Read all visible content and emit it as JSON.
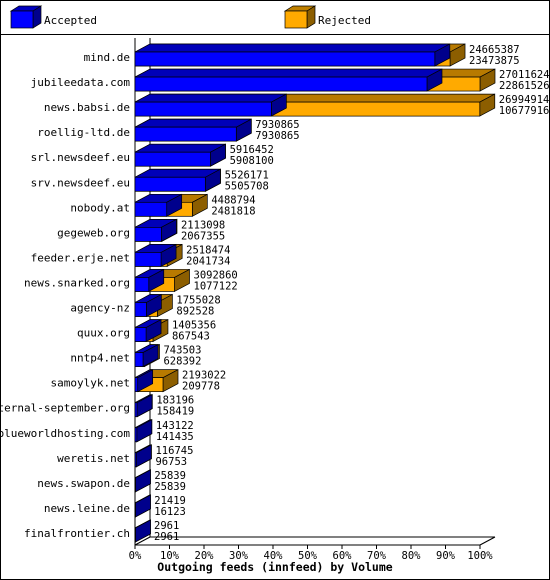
{
  "chart_data": {
    "type": "bar",
    "orientation": "horizontal",
    "style": "3d-overlapped",
    "xlabel": "Outgoing feeds (innfeed) by Volume",
    "ylabel": "",
    "xlim": [
      0,
      100
    ],
    "x_ticks": [
      "0%",
      "10%",
      "20%",
      "30%",
      "40%",
      "50%",
      "60%",
      "70%",
      "80%",
      "90%",
      "100%"
    ],
    "legend_position": "top",
    "colors": {
      "accepted": "#0000ff",
      "rejected": "#ffaa00"
    },
    "categories": [
      "mind.de",
      "jubileedata.com",
      "news.babsi.de",
      "roellig-ltd.de",
      "srl.newsdeef.eu",
      "srv.newsdeef.eu",
      "nobody.at",
      "gegeweb.org",
      "feeder.erje.net",
      "news.snarked.org",
      "agency-nz",
      "quux.org",
      "nntp4.net",
      "samoylyk.net",
      "eternal-september.org",
      "blueworldhosting.com",
      "weretis.net",
      "news.swapon.de",
      "news.leine.de",
      "finalfrontier.ch"
    ],
    "series": [
      {
        "name": "Accepted",
        "values": [
          23473875,
          22861526,
          10677916,
          7930865,
          5908100,
          5505708,
          2481818,
          2067355,
          2041734,
          1077122,
          892528,
          867543,
          628392,
          209778,
          158419,
          141435,
          96753,
          25839,
          16123,
          2961
        ]
      },
      {
        "name": "Rejected",
        "values": [
          24665387,
          27011624,
          26994914,
          7930865,
          5916452,
          5526171,
          4488794,
          2113098,
          2518474,
          3092860,
          1755028,
          1405356,
          743503,
          2193022,
          183196,
          143122,
          116745,
          25839,
          21419,
          2961
        ]
      }
    ],
    "value_labels": [
      [
        "24665387",
        "23473875"
      ],
      [
        "27011624",
        "22861526"
      ],
      [
        "26994914",
        "10677916"
      ],
      [
        "7930865",
        "7930865"
      ],
      [
        "5916452",
        "5908100"
      ],
      [
        "5526171",
        "5505708"
      ],
      [
        "4488794",
        "2481818"
      ],
      [
        "2113098",
        "2067355"
      ],
      [
        "2518474",
        "2041734"
      ],
      [
        "3092860",
        "1077122"
      ],
      [
        "1755028",
        "892528"
      ],
      [
        "1405356",
        "867543"
      ],
      [
        "743503",
        "628392"
      ],
      [
        "2193022",
        "209778"
      ],
      [
        "183196",
        "158419"
      ],
      [
        "143122",
        "141435"
      ],
      [
        "116745",
        "96753"
      ],
      [
        "25839",
        "25839"
      ],
      [
        "21419",
        "16123"
      ],
      [
        "2961",
        "2961"
      ]
    ]
  }
}
